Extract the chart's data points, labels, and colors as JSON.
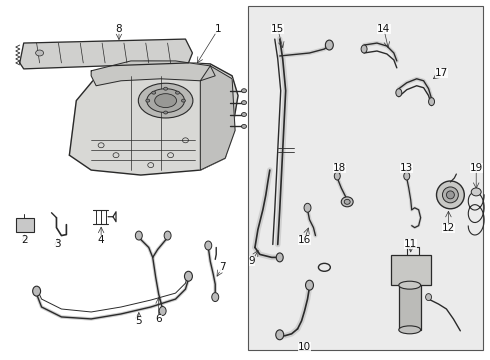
{
  "bg_color": "#ffffff",
  "fig_width": 4.9,
  "fig_height": 3.6,
  "dpi": 100,
  "box_bg": "#ebebeb",
  "box_edge": "#555555",
  "line_color": "#2a2a2a",
  "label_color": "#111111",
  "label_fs": 7.5,
  "lw_thick": 1.4,
  "lw_med": 0.9,
  "lw_thin": 0.6,
  "leader_lw": 0.5,
  "leader_color": "#333333"
}
